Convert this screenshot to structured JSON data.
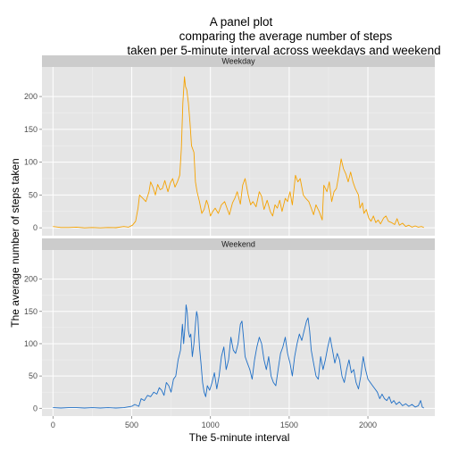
{
  "chart_data": {
    "type": "line",
    "title_lines": [
      "A panel plot",
      "comparing the average number of steps",
      "taken per 5-minute interval across weekdays and weekend"
    ],
    "xlabel": "The 5-minute interval",
    "ylabel": "The average number of steps taken",
    "xlim": [
      -70,
      2425
    ],
    "ylim": [
      -12,
      245
    ],
    "x_ticks": [
      0,
      500,
      1000,
      1500,
      2000
    ],
    "y_ticks": [
      0,
      50,
      100,
      150,
      200
    ],
    "grid": true,
    "panels": [
      {
        "strip_label": "Weekday",
        "color": "#f5a200",
        "points": [
          [
            0,
            2
          ],
          [
            50,
            0.5
          ],
          [
            100,
            0.5
          ],
          [
            150,
            1
          ],
          [
            200,
            0
          ],
          [
            250,
            0.5
          ],
          [
            300,
            0
          ],
          [
            350,
            0.5
          ],
          [
            400,
            0.3
          ],
          [
            450,
            2
          ],
          [
            480,
            1
          ],
          [
            505,
            4
          ],
          [
            525,
            10
          ],
          [
            540,
            30
          ],
          [
            550,
            50
          ],
          [
            570,
            45
          ],
          [
            590,
            40
          ],
          [
            610,
            55
          ],
          [
            620,
            70
          ],
          [
            635,
            62
          ],
          [
            650,
            50
          ],
          [
            665,
            66
          ],
          [
            680,
            58
          ],
          [
            695,
            60
          ],
          [
            710,
            72
          ],
          [
            730,
            55
          ],
          [
            745,
            68
          ],
          [
            760,
            75
          ],
          [
            775,
            62
          ],
          [
            790,
            70
          ],
          [
            805,
            80
          ],
          [
            815,
            120
          ],
          [
            825,
            190
          ],
          [
            835,
            230
          ],
          [
            842,
            215
          ],
          [
            850,
            210
          ],
          [
            860,
            190
          ],
          [
            870,
            160
          ],
          [
            880,
            125
          ],
          [
            895,
            115
          ],
          [
            905,
            70
          ],
          [
            915,
            55
          ],
          [
            930,
            40
          ],
          [
            945,
            22
          ],
          [
            960,
            28
          ],
          [
            975,
            42
          ],
          [
            985,
            35
          ],
          [
            1000,
            18
          ],
          [
            1015,
            25
          ],
          [
            1030,
            30
          ],
          [
            1050,
            22
          ],
          [
            1070,
            35
          ],
          [
            1090,
            40
          ],
          [
            1105,
            30
          ],
          [
            1120,
            20
          ],
          [
            1140,
            38
          ],
          [
            1155,
            45
          ],
          [
            1170,
            55
          ],
          [
            1190,
            36
          ],
          [
            1205,
            65
          ],
          [
            1220,
            75
          ],
          [
            1240,
            50
          ],
          [
            1255,
            35
          ],
          [
            1270,
            40
          ],
          [
            1290,
            32
          ],
          [
            1310,
            55
          ],
          [
            1325,
            48
          ],
          [
            1340,
            28
          ],
          [
            1360,
            42
          ],
          [
            1380,
            25
          ],
          [
            1395,
            18
          ],
          [
            1410,
            35
          ],
          [
            1425,
            30
          ],
          [
            1440,
            42
          ],
          [
            1455,
            25
          ],
          [
            1475,
            45
          ],
          [
            1490,
            40
          ],
          [
            1505,
            55
          ],
          [
            1520,
            35
          ],
          [
            1540,
            80
          ],
          [
            1555,
            70
          ],
          [
            1570,
            75
          ],
          [
            1590,
            50
          ],
          [
            1605,
            45
          ],
          [
            1625,
            40
          ],
          [
            1640,
            30
          ],
          [
            1655,
            20
          ],
          [
            1670,
            35
          ],
          [
            1690,
            25
          ],
          [
            1710,
            12
          ],
          [
            1720,
            65
          ],
          [
            1740,
            55
          ],
          [
            1755,
            70
          ],
          [
            1770,
            40
          ],
          [
            1785,
            55
          ],
          [
            1800,
            60
          ],
          [
            1815,
            80
          ],
          [
            1830,
            105
          ],
          [
            1845,
            90
          ],
          [
            1860,
            82
          ],
          [
            1875,
            70
          ],
          [
            1890,
            85
          ],
          [
            1905,
            70
          ],
          [
            1920,
            60
          ],
          [
            1940,
            50
          ],
          [
            1950,
            30
          ],
          [
            1965,
            38
          ],
          [
            1975,
            22
          ],
          [
            1990,
            28
          ],
          [
            2005,
            15
          ],
          [
            2020,
            10
          ],
          [
            2035,
            18
          ],
          [
            2050,
            8
          ],
          [
            2065,
            12
          ],
          [
            2080,
            6
          ],
          [
            2100,
            15
          ],
          [
            2115,
            18
          ],
          [
            2130,
            10
          ],
          [
            2150,
            8
          ],
          [
            2170,
            5
          ],
          [
            2185,
            14
          ],
          [
            2200,
            4
          ],
          [
            2220,
            7
          ],
          [
            2240,
            2
          ],
          [
            2260,
            4
          ],
          [
            2280,
            1
          ],
          [
            2300,
            3
          ],
          [
            2320,
            1
          ],
          [
            2340,
            2
          ],
          [
            2355,
            0.5
          ]
        ]
      },
      {
        "strip_label": "Weekend",
        "color": "#1f6fc6",
        "points": [
          [
            0,
            1
          ],
          [
            50,
            0.5
          ],
          [
            100,
            1
          ],
          [
            150,
            1
          ],
          [
            200,
            0.5
          ],
          [
            250,
            1
          ],
          [
            300,
            0.5
          ],
          [
            350,
            1
          ],
          [
            400,
            0.5
          ],
          [
            450,
            1
          ],
          [
            500,
            3
          ],
          [
            520,
            6
          ],
          [
            545,
            3
          ],
          [
            560,
            15
          ],
          [
            580,
            12
          ],
          [
            600,
            20
          ],
          [
            620,
            18
          ],
          [
            640,
            25
          ],
          [
            660,
            22
          ],
          [
            675,
            32
          ],
          [
            690,
            28
          ],
          [
            705,
            20
          ],
          [
            720,
            40
          ],
          [
            735,
            35
          ],
          [
            750,
            25
          ],
          [
            765,
            45
          ],
          [
            780,
            50
          ],
          [
            795,
            75
          ],
          [
            810,
            90
          ],
          [
            822,
            130
          ],
          [
            830,
            100
          ],
          [
            838,
            125
          ],
          [
            845,
            160
          ],
          [
            852,
            150
          ],
          [
            860,
            120
          ],
          [
            868,
            110
          ],
          [
            875,
            115
          ],
          [
            885,
            80
          ],
          [
            895,
            100
          ],
          [
            905,
            130
          ],
          [
            912,
            150
          ],
          [
            920,
            140
          ],
          [
            930,
            95
          ],
          [
            940,
            70
          ],
          [
            950,
            40
          ],
          [
            960,
            25
          ],
          [
            970,
            18
          ],
          [
            980,
            35
          ],
          [
            995,
            28
          ],
          [
            1010,
            40
          ],
          [
            1025,
            55
          ],
          [
            1040,
            30
          ],
          [
            1055,
            50
          ],
          [
            1070,
            80
          ],
          [
            1085,
            95
          ],
          [
            1100,
            60
          ],
          [
            1115,
            75
          ],
          [
            1130,
            110
          ],
          [
            1145,
            90
          ],
          [
            1160,
            85
          ],
          [
            1175,
            100
          ],
          [
            1190,
            130
          ],
          [
            1200,
            135
          ],
          [
            1210,
            110
          ],
          [
            1220,
            80
          ],
          [
            1235,
            70
          ],
          [
            1250,
            60
          ],
          [
            1265,
            45
          ],
          [
            1280,
            75
          ],
          [
            1295,
            95
          ],
          [
            1310,
            110
          ],
          [
            1325,
            100
          ],
          [
            1340,
            75
          ],
          [
            1355,
            60
          ],
          [
            1370,
            80
          ],
          [
            1385,
            50
          ],
          [
            1400,
            40
          ],
          [
            1415,
            35
          ],
          [
            1430,
            60
          ],
          [
            1445,
            85
          ],
          [
            1460,
            95
          ],
          [
            1475,
            110
          ],
          [
            1490,
            85
          ],
          [
            1505,
            70
          ],
          [
            1520,
            50
          ],
          [
            1535,
            80
          ],
          [
            1550,
            100
          ],
          [
            1565,
            115
          ],
          [
            1580,
            105
          ],
          [
            1595,
            120
          ],
          [
            1610,
            135
          ],
          [
            1620,
            140
          ],
          [
            1630,
            120
          ],
          [
            1640,
            90
          ],
          [
            1655,
            70
          ],
          [
            1670,
            50
          ],
          [
            1685,
            45
          ],
          [
            1700,
            80
          ],
          [
            1715,
            60
          ],
          [
            1730,
            75
          ],
          [
            1745,
            95
          ],
          [
            1760,
            110
          ],
          [
            1775,
            90
          ],
          [
            1790,
            70
          ],
          [
            1805,
            85
          ],
          [
            1820,
            75
          ],
          [
            1835,
            50
          ],
          [
            1850,
            40
          ],
          [
            1865,
            60
          ],
          [
            1880,
            75
          ],
          [
            1895,
            55
          ],
          [
            1910,
            60
          ],
          [
            1925,
            40
          ],
          [
            1940,
            30
          ],
          [
            1955,
            50
          ],
          [
            1970,
            80
          ],
          [
            1985,
            60
          ],
          [
            2000,
            45
          ],
          [
            2015,
            40
          ],
          [
            2030,
            35
          ],
          [
            2045,
            30
          ],
          [
            2060,
            25
          ],
          [
            2075,
            15
          ],
          [
            2090,
            22
          ],
          [
            2105,
            15
          ],
          [
            2120,
            12
          ],
          [
            2135,
            18
          ],
          [
            2150,
            8
          ],
          [
            2165,
            12
          ],
          [
            2180,
            6
          ],
          [
            2200,
            10
          ],
          [
            2220,
            4
          ],
          [
            2240,
            7
          ],
          [
            2260,
            3
          ],
          [
            2280,
            6
          ],
          [
            2300,
            2
          ],
          [
            2320,
            4
          ],
          [
            2335,
            12
          ],
          [
            2345,
            2
          ],
          [
            2355,
            0.5
          ]
        ]
      }
    ]
  }
}
